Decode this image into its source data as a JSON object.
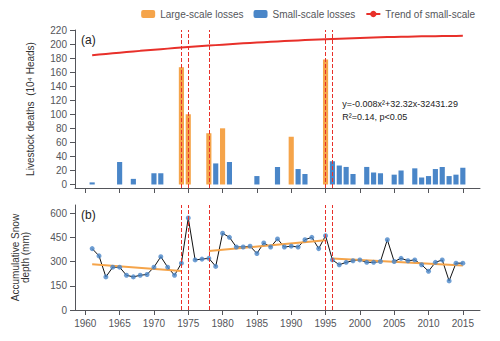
{
  "chart_data": [
    {
      "type": "bar",
      "title": "(a)",
      "x": [
        1961,
        1962,
        1963,
        1964,
        1965,
        1966,
        1967,
        1968,
        1969,
        1970,
        1971,
        1972,
        1973,
        1974,
        1975,
        1976,
        1977,
        1978,
        1979,
        1980,
        1981,
        1982,
        1983,
        1984,
        1985,
        1986,
        1987,
        1988,
        1989,
        1990,
        1991,
        1992,
        1993,
        1994,
        1995,
        1996,
        1997,
        1998,
        1999,
        2000,
        2001,
        2002,
        2003,
        2004,
        2005,
        2006,
        2007,
        2008,
        2009,
        2010,
        2011,
        2012,
        2013,
        2014,
        2015
      ],
      "series": [
        {
          "name": "Large-scale losses",
          "type": "bar",
          "color": "#F5A44A",
          "values": [
            0,
            0,
            0,
            0,
            0,
            0,
            0,
            0,
            0,
            0,
            0,
            0,
            0,
            167,
            100,
            0,
            0,
            73,
            0,
            80,
            0,
            0,
            0,
            0,
            0,
            0,
            0,
            0,
            0,
            68,
            0,
            0,
            0,
            0,
            178,
            0,
            0,
            0,
            0,
            0,
            0,
            0,
            0,
            0,
            0,
            0,
            0,
            0,
            0,
            0,
            0,
            0,
            0,
            0,
            0
          ]
        },
        {
          "name": "Small-scale losses",
          "type": "bar",
          "color": "#4A86C8",
          "values": [
            3,
            0,
            0,
            0,
            32,
            0,
            8,
            0,
            0,
            16,
            16,
            0,
            0,
            0,
            0,
            0,
            0,
            0,
            30,
            0,
            32,
            0,
            0,
            0,
            12,
            0,
            0,
            25,
            0,
            0,
            22,
            15,
            0,
            0,
            0,
            33,
            27,
            25,
            15,
            0,
            25,
            17,
            16,
            0,
            14,
            20,
            0,
            23,
            10,
            12,
            22,
            25,
            12,
            14,
            24
          ]
        },
        {
          "name": "Trend of small-scale",
          "type": "line",
          "color": "#E8302A",
          "line_style": "solid",
          "values": [
            184.062,
            184.998,
            185.918,
            186.822,
            187.71,
            188.582,
            189.438,
            190.278,
            191.102,
            191.91,
            192.702,
            193.478,
            194.238,
            194.982,
            195.71,
            196.422,
            197.118,
            197.798,
            198.462,
            199.11,
            199.742,
            200.358,
            200.958,
            201.542,
            202.11,
            202.662,
            203.198,
            203.718,
            204.222,
            204.71,
            205.182,
            205.638,
            206.078,
            206.502,
            206.91,
            207.302,
            207.678,
            208.038,
            208.382,
            208.71,
            209.022,
            209.318,
            209.598,
            209.862,
            210.11,
            210.342,
            210.558,
            210.758,
            210.942,
            211.11,
            211.262,
            211.398,
            211.518,
            211.622,
            211.71
          ]
        }
      ],
      "ylabel": "Livestock deaths  (10⁴ Heads)",
      "annotations": [
        "y=-0.008x²+32.32x-32431.29",
        "R²=0.14, p<0.05"
      ],
      "vlines": {
        "x": [
          1974,
          1975,
          1978,
          1995,
          1996
        ],
        "color": "#E8302A",
        "line_style": "dashed"
      },
      "xlim": [
        1958.5,
        2017.5
      ],
      "xticks": [
        1960,
        1965,
        1970,
        1975,
        1980,
        1985,
        1990,
        1995,
        2000,
        2005,
        2010,
        2015
      ],
      "ylim": [
        -5,
        220
      ],
      "yticks": [
        0,
        20,
        40,
        60,
        80,
        100,
        120,
        140,
        160,
        180,
        200,
        220
      ],
      "legend": "upper right",
      "tick_labels": "y",
      "grid": false
    },
    {
      "type": "line",
      "title": "(b)",
      "x": [
        1961,
        1962,
        1963,
        1964,
        1965,
        1966,
        1967,
        1968,
        1969,
        1970,
        1971,
        1972,
        1973,
        1974,
        1975,
        1976,
        1977,
        1978,
        1979,
        1980,
        1981,
        1982,
        1983,
        1984,
        1985,
        1986,
        1987,
        1988,
        1989,
        1990,
        1991,
        1992,
        1993,
        1994,
        1995,
        1996,
        1997,
        1998,
        1999,
        2000,
        2001,
        2002,
        2003,
        2004,
        2005,
        2006,
        2007,
        2008,
        2009,
        2010,
        2011,
        2012,
        2013,
        2014,
        2015
      ],
      "series": [
        {
          "type": "line",
          "color": "#111111",
          "line_style": "solid",
          "values": [
            380,
            335,
            205,
            265,
            265,
            215,
            205,
            215,
            220,
            265,
            330,
            265,
            215,
            290,
            570,
            310,
            315,
            320,
            270,
            475,
            450,
            390,
            390,
            395,
            350,
            415,
            390,
            440,
            390,
            395,
            390,
            435,
            450,
            380,
            460,
            310,
            280,
            295,
            305,
            310,
            295,
            295,
            300,
            435,
            300,
            320,
            305,
            310,
            280,
            240,
            295,
            310,
            180,
            290,
            290
          ]
        },
        {
          "type": "scatter",
          "color": "#4A86C8",
          "marker": "circle",
          "values": [
            380,
            335,
            205,
            265,
            265,
            215,
            205,
            215,
            220,
            265,
            330,
            265,
            215,
            290,
            570,
            310,
            315,
            320,
            270,
            475,
            450,
            390,
            390,
            395,
            350,
            415,
            390,
            440,
            390,
            395,
            390,
            435,
            450,
            380,
            460,
            310,
            280,
            295,
            305,
            310,
            295,
            295,
            300,
            435,
            300,
            320,
            305,
            310,
            280,
            240,
            295,
            310,
            180,
            290,
            290
          ]
        },
        {
          "type": "line",
          "color": "#F5A44A",
          "line_style": "solid",
          "x": [
            1961,
            1974
          ],
          "values": [
            283.142857,
            241.142857
          ]
        },
        {
          "type": "line",
          "color": "#F5A44A",
          "line_style": "solid",
          "x": [
            1978,
            1995
          ],
          "values": [
            365.877193,
            432.45614
          ]
        },
        {
          "type": "line",
          "color": "#F5A44A",
          "line_style": "solid",
          "x": [
            1996,
            2015
          ],
          "values": [
            318.357143,
            276.142857
          ]
        }
      ],
      "ylabel": "Accumulative Snow\ndepth (mm)",
      "vlines": {
        "x": [
          1974,
          1975,
          1978,
          1995,
          1996
        ],
        "color": "#E8302A",
        "line_style": "dashed"
      },
      "xlim": [
        1958.5,
        2017.5
      ],
      "xticks": [
        1960,
        1965,
        1970,
        1975,
        1980,
        1985,
        1990,
        1995,
        2000,
        2005,
        2010,
        2015
      ],
      "ylim": [
        0,
        650
      ],
      "yticks": [
        0,
        150,
        300,
        450,
        600
      ],
      "grid": false
    }
  ]
}
